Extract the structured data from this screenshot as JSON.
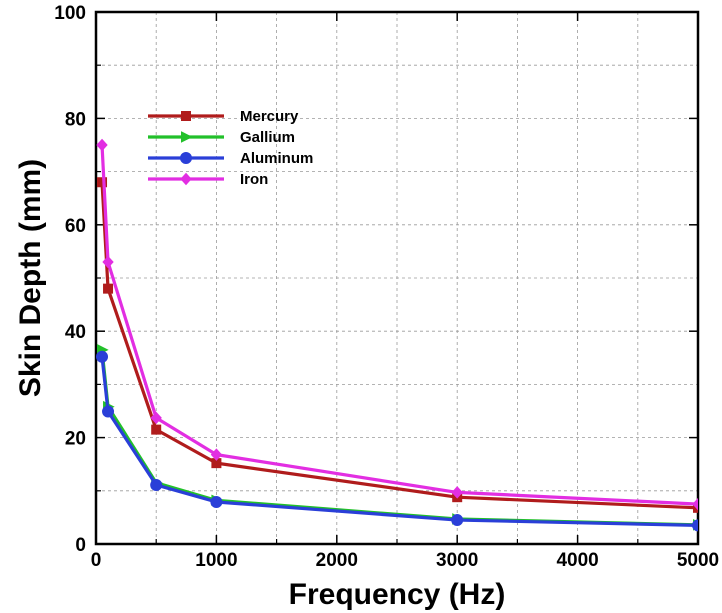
{
  "chart_data": {
    "type": "line",
    "xlabel": "Frequency (Hz)",
    "ylabel": "Skin Depth (mm)",
    "xlim": [
      0,
      5000
    ],
    "ylim": [
      0,
      100
    ],
    "xticks": [
      0,
      1000,
      2000,
      3000,
      4000,
      5000
    ],
    "yticks": [
      0,
      20,
      40,
      60,
      80,
      100
    ],
    "grid": true,
    "legend_position": "upper-left",
    "series": [
      {
        "name": "Mercury",
        "color": "#b01c1c",
        "marker": "square",
        "x": [
          50,
          100,
          500,
          1000,
          3000,
          5000
        ],
        "y": [
          68,
          48,
          21.5,
          15.2,
          8.8,
          6.8
        ]
      },
      {
        "name": "Gallium",
        "color": "#22c02a",
        "marker": "triangle-right",
        "x": [
          50,
          100,
          500,
          1000,
          3000,
          5000
        ],
        "y": [
          36.5,
          25.8,
          11.5,
          8.2,
          4.7,
          3.6
        ]
      },
      {
        "name": "Aluminum",
        "color": "#2a3fd8",
        "marker": "circle",
        "x": [
          50,
          100,
          500,
          1000,
          3000,
          5000
        ],
        "y": [
          35.2,
          24.9,
          11.1,
          7.9,
          4.5,
          3.5
        ]
      },
      {
        "name": "Iron",
        "color": "#e22ee2",
        "marker": "diamond",
        "x": [
          50,
          100,
          500,
          1000,
          3000,
          5000
        ],
        "y": [
          75,
          53,
          23.7,
          16.8,
          9.7,
          7.5
        ]
      }
    ]
  }
}
